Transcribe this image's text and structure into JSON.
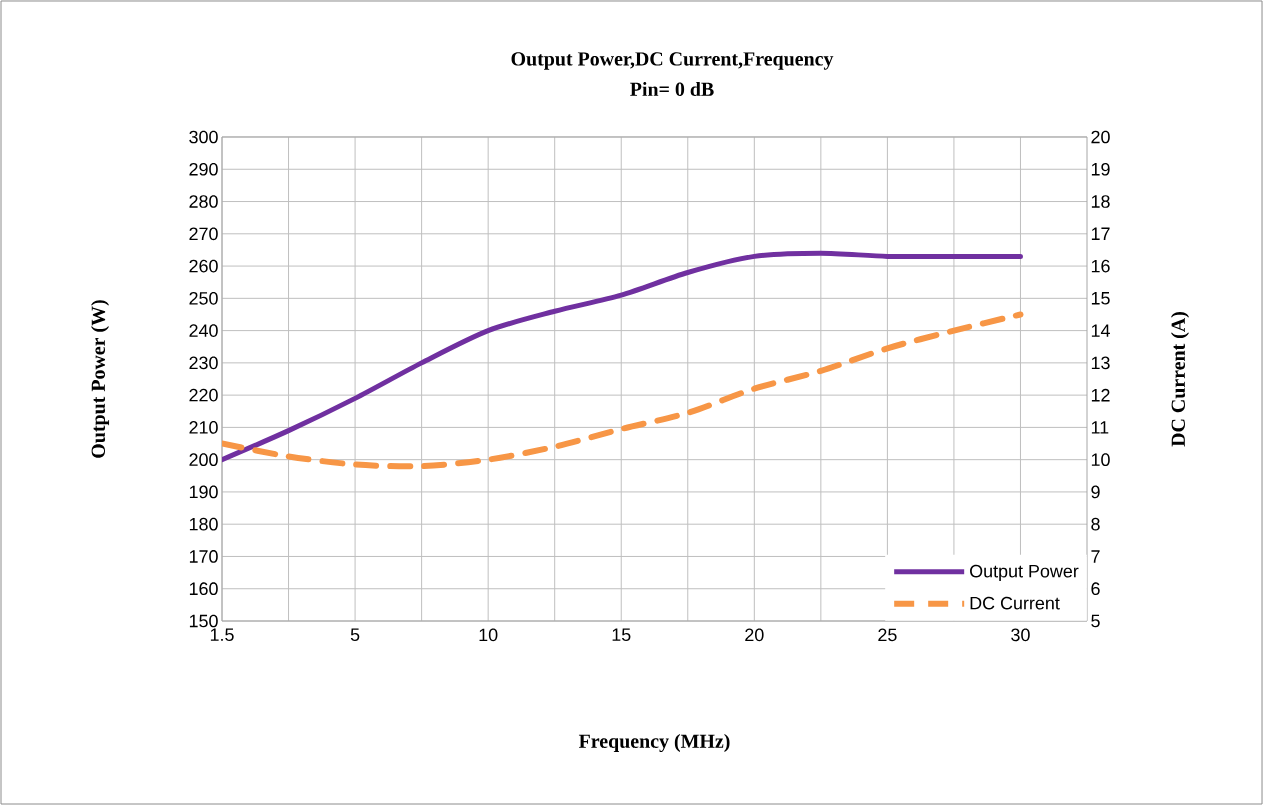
{
  "chart_data": {
    "type": "line",
    "title": "Output Power,DC Current,Frequency",
    "subtitle": "Pin= 0 dB",
    "xlabel": "Frequency (MHz)",
    "ylabel": "Output Power (W)",
    "y2label": "DC Current (A)",
    "categories": [
      "1.5",
      null,
      "5",
      null,
      "10",
      null,
      "15",
      null,
      "20",
      null,
      "25",
      null,
      "30"
    ],
    "series": [
      {
        "name": "Output Power",
        "color": "#7030a0",
        "line_style": "solid",
        "values": [
          200,
          209,
          219,
          230,
          240,
          246,
          251,
          258,
          263,
          264,
          263,
          263,
          263
        ]
      },
      {
        "name": "DC Current",
        "color": "#f79646",
        "line_style": "dashed",
        "axis": "y2",
        "values": [
          10.5,
          10.1,
          9.85,
          9.8,
          10.0,
          10.4,
          10.95,
          11.45,
          12.2,
          12.75,
          13.45,
          14.0,
          14.5
        ]
      }
    ],
    "ylim": [
      150,
      300
    ],
    "yticks": [
      150,
      160,
      170,
      180,
      190,
      200,
      210,
      220,
      230,
      240,
      250,
      260,
      270,
      280,
      290,
      300
    ],
    "y2lim": [
      5,
      20
    ],
    "y2ticks": [
      5,
      6,
      7,
      8,
      9,
      10,
      11,
      12,
      13,
      14,
      15,
      16,
      17,
      18,
      19,
      20
    ],
    "grid": true,
    "legend": "bottom right",
    "marker": "none"
  }
}
